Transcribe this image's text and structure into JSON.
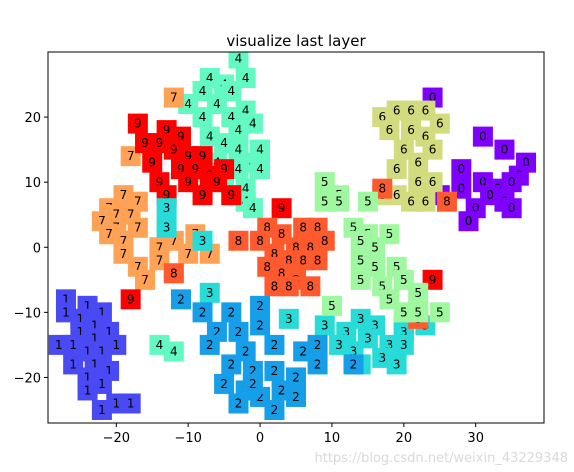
{
  "chart_data": {
    "type": "scatter",
    "title": "visualize last layer",
    "xlabel": "",
    "ylabel": "",
    "xlim": [
      -29.5,
      39.5
    ],
    "ylim": [
      -27,
      30
    ],
    "x_ticks": [
      -20,
      -10,
      0,
      10,
      20,
      30
    ],
    "y_ticks": [
      -20,
      -10,
      0,
      10,
      20
    ],
    "grid": false,
    "legend": "none",
    "marker": "square with digit label",
    "colors": {
      "0": "#8000ff",
      "1": "#4a4af5",
      "2": "#169ee8",
      "3": "#27dcd8",
      "4": "#62f9c2",
      "5": "#9ff7a0",
      "6": "#d2dc7f",
      "7": "#ffa256",
      "8": "#ff5a2e",
      "9": "#ff0000"
    },
    "points": [
      {
        "l": "0",
        "x": 24,
        "y": 23
      },
      {
        "l": "0",
        "x": 31,
        "y": 17
      },
      {
        "l": "0",
        "x": 34,
        "y": 15
      },
      {
        "l": "0",
        "x": 37,
        "y": 13
      },
      {
        "l": "0",
        "x": 28,
        "y": 12
      },
      {
        "l": "0",
        "x": 36,
        "y": 11
      },
      {
        "l": "0",
        "x": 31,
        "y": 10
      },
      {
        "l": "0",
        "x": 35,
        "y": 10
      },
      {
        "l": "0",
        "x": 33,
        "y": 9
      },
      {
        "l": "0",
        "x": 28,
        "y": 9
      },
      {
        "l": "0",
        "x": 32,
        "y": 8
      },
      {
        "l": "0",
        "x": 34,
        "y": 7
      },
      {
        "l": "0",
        "x": 30,
        "y": 6
      },
      {
        "l": "0",
        "x": 35,
        "y": 6
      },
      {
        "l": "0",
        "x": 25,
        "y": 8
      },
      {
        "l": "0",
        "x": 29,
        "y": 4
      },
      {
        "l": "6",
        "x": 19,
        "y": 21
      },
      {
        "l": "6",
        "x": 21,
        "y": 21
      },
      {
        "l": "6",
        "x": 17,
        "y": 20
      },
      {
        "l": "6",
        "x": 23,
        "y": 21
      },
      {
        "l": "6",
        "x": 25,
        "y": 19
      },
      {
        "l": "6",
        "x": 18,
        "y": 18
      },
      {
        "l": "6",
        "x": 21,
        "y": 18
      },
      {
        "l": "6",
        "x": 23,
        "y": 17
      },
      {
        "l": "6",
        "x": 20,
        "y": 15
      },
      {
        "l": "6",
        "x": 24,
        "y": 15
      },
      {
        "l": "6",
        "x": 22,
        "y": 13
      },
      {
        "l": "6",
        "x": 19,
        "y": 12
      },
      {
        "l": "6",
        "x": 22,
        "y": 10
      },
      {
        "l": "6",
        "x": 24,
        "y": 10
      },
      {
        "l": "6",
        "x": 19,
        "y": 8
      },
      {
        "l": "6",
        "x": 21,
        "y": 7
      },
      {
        "l": "6",
        "x": 23,
        "y": 7
      },
      {
        "l": "6",
        "x": 17,
        "y": 8
      },
      {
        "l": "4",
        "x": -3,
        "y": 29
      },
      {
        "l": "4",
        "x": -7,
        "y": 26
      },
      {
        "l": "4",
        "x": -5,
        "y": 25
      },
      {
        "l": "4",
        "x": -2,
        "y": 26
      },
      {
        "l": "4",
        "x": -8,
        "y": 24
      },
      {
        "l": "4",
        "x": -4,
        "y": 24
      },
      {
        "l": "4",
        "x": -10,
        "y": 22
      },
      {
        "l": "4",
        "x": -6,
        "y": 22
      },
      {
        "l": "4",
        "x": -2,
        "y": 21
      },
      {
        "l": "4",
        "x": -8,
        "y": 20
      },
      {
        "l": "4",
        "x": -4,
        "y": 20
      },
      {
        "l": "4",
        "x": -7,
        "y": 17
      },
      {
        "l": "4",
        "x": -3,
        "y": 18
      },
      {
        "l": "4",
        "x": -1,
        "y": 19
      },
      {
        "l": "4",
        "x": -5,
        "y": 16
      },
      {
        "l": "4",
        "x": -3,
        "y": 15
      },
      {
        "l": "4",
        "x": -1,
        "y": 13
      },
      {
        "l": "4",
        "x": -3,
        "y": 12
      },
      {
        "l": "4",
        "x": 0,
        "y": 12
      },
      {
        "l": "4",
        "x": -5,
        "y": 10
      },
      {
        "l": "4",
        "x": -2,
        "y": 9
      },
      {
        "l": "4",
        "x": -4,
        "y": 8
      },
      {
        "l": "4",
        "x": -2,
        "y": 7
      },
      {
        "l": "4",
        "x": -1,
        "y": 6
      },
      {
        "l": "4",
        "x": -14,
        "y": -15
      },
      {
        "l": "4",
        "x": -12,
        "y": -16
      },
      {
        "l": "4",
        "x": 0,
        "y": 15
      },
      {
        "l": "4",
        "x": -6,
        "y": 13
      },
      {
        "l": "7",
        "x": -12,
        "y": 23
      },
      {
        "l": "7",
        "x": -18,
        "y": 14
      },
      {
        "l": "7",
        "x": -19,
        "y": 8
      },
      {
        "l": "7",
        "x": -21,
        "y": 6
      },
      {
        "l": "7",
        "x": -17,
        "y": 7
      },
      {
        "l": "7",
        "x": -20,
        "y": 5
      },
      {
        "l": "7",
        "x": -22,
        "y": 4
      },
      {
        "l": "7",
        "x": -18,
        "y": 5
      },
      {
        "l": "7",
        "x": -20,
        "y": 3
      },
      {
        "l": "7",
        "x": -17,
        "y": 3
      },
      {
        "l": "7",
        "x": -21,
        "y": 2
      },
      {
        "l": "7",
        "x": -19,
        "y": 1
      },
      {
        "l": "7",
        "x": -12,
        "y": 1
      },
      {
        "l": "7",
        "x": -14,
        "y": 0
      },
      {
        "l": "7",
        "x": -10,
        "y": -1
      },
      {
        "l": "7",
        "x": -19,
        "y": -1
      },
      {
        "l": "7",
        "x": -17,
        "y": -3
      },
      {
        "l": "7",
        "x": -14,
        "y": -2
      },
      {
        "l": "7",
        "x": -16,
        "y": -5
      },
      {
        "l": "7",
        "x": -7,
        "y": -1
      },
      {
        "l": "7",
        "x": -9,
        "y": 2
      },
      {
        "l": "7",
        "x": -12,
        "y": -4
      },
      {
        "l": "9",
        "x": -17,
        "y": 19
      },
      {
        "l": "9",
        "x": -13,
        "y": 18
      },
      {
        "l": "9",
        "x": -11,
        "y": 17
      },
      {
        "l": "9",
        "x": -16,
        "y": 16
      },
      {
        "l": "9",
        "x": -14,
        "y": 16
      },
      {
        "l": "9",
        "x": -12,
        "y": 15
      },
      {
        "l": "9",
        "x": -10,
        "y": 14
      },
      {
        "l": "9",
        "x": -8,
        "y": 14
      },
      {
        "l": "9",
        "x": -15,
        "y": 13
      },
      {
        "l": "9",
        "x": -11,
        "y": 12
      },
      {
        "l": "9",
        "x": -9,
        "y": 12
      },
      {
        "l": "9",
        "x": -7,
        "y": 11
      },
      {
        "l": "9",
        "x": -5,
        "y": 12
      },
      {
        "l": "9",
        "x": -14,
        "y": 10
      },
      {
        "l": "9",
        "x": -10,
        "y": 10
      },
      {
        "l": "9",
        "x": -6,
        "y": 10
      },
      {
        "l": "9",
        "x": -8,
        "y": 8
      },
      {
        "l": "9",
        "x": -4,
        "y": 8
      },
      {
        "l": "9",
        "x": -13,
        "y": 8
      },
      {
        "l": "9",
        "x": -18,
        "y": -8
      },
      {
        "l": "9",
        "x": 3,
        "y": 6
      },
      {
        "l": "9",
        "x": 24,
        "y": -5
      },
      {
        "l": "9",
        "x": 20,
        "y": -12
      },
      {
        "l": "3",
        "x": -13,
        "y": 6
      },
      {
        "l": "3",
        "x": -13,
        "y": 3
      },
      {
        "l": "3",
        "x": -8,
        "y": 1
      },
      {
        "l": "3",
        "x": -7,
        "y": -7
      },
      {
        "l": "3",
        "x": 4,
        "y": -11
      },
      {
        "l": "3",
        "x": 9,
        "y": -12
      },
      {
        "l": "3",
        "x": 12,
        "y": -13
      },
      {
        "l": "3",
        "x": 14,
        "y": -11
      },
      {
        "l": "3",
        "x": 16,
        "y": -12
      },
      {
        "l": "3",
        "x": 20,
        "y": -13
      },
      {
        "l": "3",
        "x": 11,
        "y": -15
      },
      {
        "l": "3",
        "x": 15,
        "y": -14
      },
      {
        "l": "3",
        "x": 18,
        "y": -15
      },
      {
        "l": "3",
        "x": 13,
        "y": -16
      },
      {
        "l": "3",
        "x": 17,
        "y": -17
      },
      {
        "l": "3",
        "x": 20,
        "y": -15
      },
      {
        "l": "3",
        "x": 14,
        "y": -18
      },
      {
        "l": "3",
        "x": 19,
        "y": -18
      },
      {
        "l": "3",
        "x": 23,
        "y": -12
      },
      {
        "l": "8",
        "x": 1,
        "y": 3
      },
      {
        "l": "8",
        "x": 3,
        "y": 2
      },
      {
        "l": "8",
        "x": 6,
        "y": 3
      },
      {
        "l": "8",
        "x": 8,
        "y": 3
      },
      {
        "l": "8",
        "x": -3,
        "y": 1
      },
      {
        "l": "8",
        "x": 0,
        "y": 1
      },
      {
        "l": "8",
        "x": 5,
        "y": 0
      },
      {
        "l": "8",
        "x": 7,
        "y": 0
      },
      {
        "l": "8",
        "x": 9,
        "y": 1
      },
      {
        "l": "8",
        "x": 2,
        "y": -1
      },
      {
        "l": "8",
        "x": 4,
        "y": -2
      },
      {
        "l": "8",
        "x": 6,
        "y": -2
      },
      {
        "l": "8",
        "x": 8,
        "y": -2
      },
      {
        "l": "8",
        "x": 1,
        "y": -3
      },
      {
        "l": "8",
        "x": 3,
        "y": -4
      },
      {
        "l": "8",
        "x": 5,
        "y": -5
      },
      {
        "l": "8",
        "x": 2,
        "y": -6
      },
      {
        "l": "8",
        "x": 4,
        "y": -6
      },
      {
        "l": "8",
        "x": 7,
        "y": -6
      },
      {
        "l": "8",
        "x": -12,
        "y": -4
      },
      {
        "l": "8",
        "x": 26,
        "y": 7
      },
      {
        "l": "8",
        "x": 22,
        "y": -11
      },
      {
        "l": "8",
        "x": 17,
        "y": 9
      },
      {
        "l": "5",
        "x": 9,
        "y": 10
      },
      {
        "l": "5",
        "x": 11,
        "y": 8
      },
      {
        "l": "5",
        "x": 9,
        "y": 7
      },
      {
        "l": "5",
        "x": 11,
        "y": 7
      },
      {
        "l": "5",
        "x": 15,
        "y": 7
      },
      {
        "l": "5",
        "x": 13,
        "y": 3
      },
      {
        "l": "5",
        "x": 15,
        "y": 2
      },
      {
        "l": "5",
        "x": 14,
        "y": 1
      },
      {
        "l": "5",
        "x": 18,
        "y": 2
      },
      {
        "l": "5",
        "x": 16,
        "y": 0
      },
      {
        "l": "5",
        "x": 14,
        "y": -2
      },
      {
        "l": "5",
        "x": 16,
        "y": -3
      },
      {
        "l": "5",
        "x": 19,
        "y": -3
      },
      {
        "l": "5",
        "x": 14,
        "y": -5
      },
      {
        "l": "5",
        "x": 17,
        "y": -6
      },
      {
        "l": "5",
        "x": 20,
        "y": -5
      },
      {
        "l": "5",
        "x": 22,
        "y": -7
      },
      {
        "l": "5",
        "x": 18,
        "y": -8
      },
      {
        "l": "5",
        "x": 10,
        "y": -9
      },
      {
        "l": "5",
        "x": 20,
        "y": -10
      },
      {
        "l": "5",
        "x": 25,
        "y": -10
      },
      {
        "l": "5",
        "x": 22,
        "y": -10
      },
      {
        "l": "1",
        "x": -27,
        "y": -8
      },
      {
        "l": "1",
        "x": -24,
        "y": -9
      },
      {
        "l": "1",
        "x": -22,
        "y": -10
      },
      {
        "l": "1",
        "x": -27,
        "y": -10
      },
      {
        "l": "1",
        "x": -25,
        "y": -11
      },
      {
        "l": "1",
        "x": -23,
        "y": -12
      },
      {
        "l": "1",
        "x": -21,
        "y": -13
      },
      {
        "l": "1",
        "x": -25,
        "y": -13
      },
      {
        "l": "1",
        "x": -23,
        "y": -14
      },
      {
        "l": "1",
        "x": -20,
        "y": -15
      },
      {
        "l": "1",
        "x": -28,
        "y": -15
      },
      {
        "l": "1",
        "x": -26,
        "y": -15
      },
      {
        "l": "1",
        "x": -24,
        "y": -16
      },
      {
        "l": "1",
        "x": -22,
        "y": -16
      },
      {
        "l": "1",
        "x": -26,
        "y": -18
      },
      {
        "l": "1",
        "x": -23,
        "y": -18
      },
      {
        "l": "1",
        "x": -21,
        "y": -19
      },
      {
        "l": "1",
        "x": -24,
        "y": -20
      },
      {
        "l": "1",
        "x": -22,
        "y": -21
      },
      {
        "l": "1",
        "x": -24,
        "y": -22
      },
      {
        "l": "1",
        "x": -20,
        "y": -24
      },
      {
        "l": "1",
        "x": -18,
        "y": -24
      },
      {
        "l": "1",
        "x": -22,
        "y": -25
      },
      {
        "l": "2",
        "x": -11,
        "y": -8
      },
      {
        "l": "2",
        "x": -8,
        "y": -10
      },
      {
        "l": "2",
        "x": -6,
        "y": -13
      },
      {
        "l": "2",
        "x": -3,
        "y": -13
      },
      {
        "l": "2",
        "x": -4,
        "y": -10
      },
      {
        "l": "2",
        "x": 0,
        "y": -9
      },
      {
        "l": "2",
        "x": 0,
        "y": -12
      },
      {
        "l": "2",
        "x": -2,
        "y": -16
      },
      {
        "l": "2",
        "x": 2,
        "y": -15
      },
      {
        "l": "2",
        "x": -4,
        "y": -18
      },
      {
        "l": "2",
        "x": -1,
        "y": -19
      },
      {
        "l": "2",
        "x": 2,
        "y": -19
      },
      {
        "l": "2",
        "x": 6,
        "y": -16
      },
      {
        "l": "2",
        "x": -5,
        "y": -21
      },
      {
        "l": "2",
        "x": -2,
        "y": -22
      },
      {
        "l": "2",
        "x": 0,
        "y": -23
      },
      {
        "l": "2",
        "x": 3,
        "y": -22
      },
      {
        "l": "2",
        "x": 5,
        "y": -20
      },
      {
        "l": "2",
        "x": 8,
        "y": -18
      },
      {
        "l": "2",
        "x": -3,
        "y": -24
      },
      {
        "l": "2",
        "x": 2,
        "y": -25
      },
      {
        "l": "2",
        "x": 5,
        "y": -23
      },
      {
        "l": "2",
        "x": 13,
        "y": -18
      },
      {
        "l": "2",
        "x": 8,
        "y": -15
      },
      {
        "l": "2",
        "x": -1,
        "y": -21
      },
      {
        "l": "2",
        "x": -7,
        "y": -15
      }
    ]
  },
  "watermark": "https://blog.csdn.net/weixin_43229348"
}
